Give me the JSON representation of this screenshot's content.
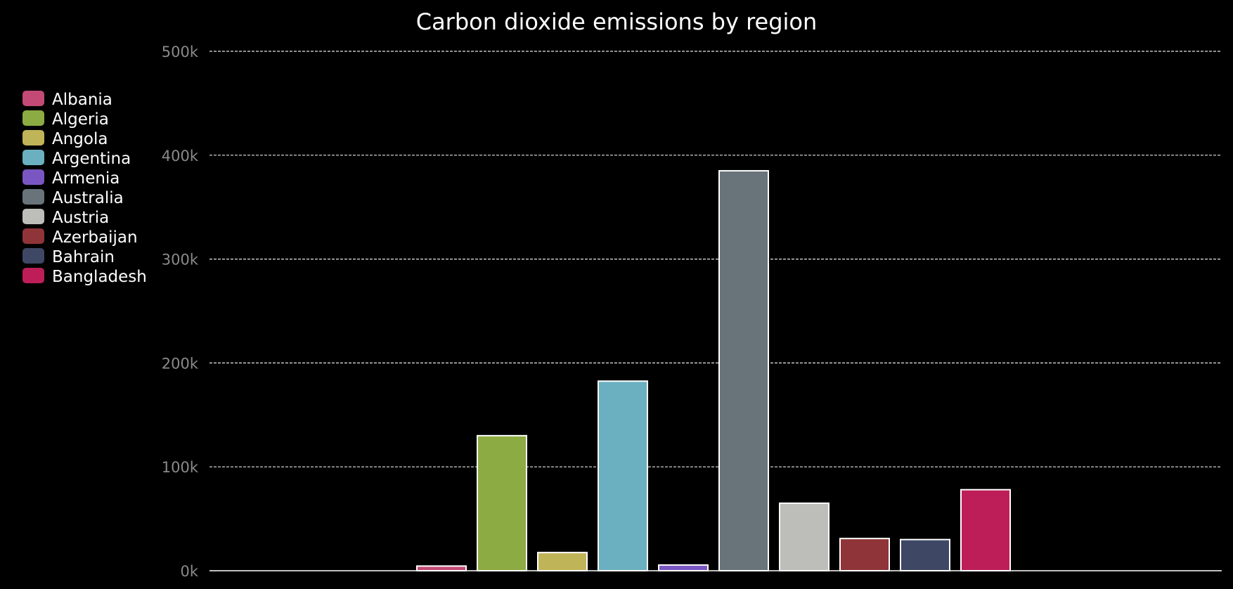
{
  "chart_data": {
    "type": "bar",
    "title": "Carbon dioxide emissions by region",
    "xlabel": "",
    "ylabel": "",
    "ylim": [
      0,
      500000
    ],
    "yticks": [
      0,
      100000,
      200000,
      300000,
      400000,
      500000
    ],
    "ytick_labels": [
      "0k",
      "100k",
      "200k",
      "300k",
      "400k",
      "500k"
    ],
    "grid": true,
    "legend_position": "left",
    "categories": [
      "Albania",
      "Algeria",
      "Angola",
      "Argentina",
      "Armenia",
      "Australia",
      "Austria",
      "Azerbaijan",
      "Bahrain",
      "Bangladesh"
    ],
    "values": [
      4500,
      130000,
      17500,
      182500,
      5500,
      385000,
      65000,
      31000,
      30000,
      78000
    ],
    "colors": [
      "#c44a75",
      "#8cab43",
      "#c0b458",
      "#6ab0c0",
      "#7a56c2",
      "#69747a",
      "#bdbdb9",
      "#8f3438",
      "#3e4865",
      "#bd1e58"
    ]
  }
}
